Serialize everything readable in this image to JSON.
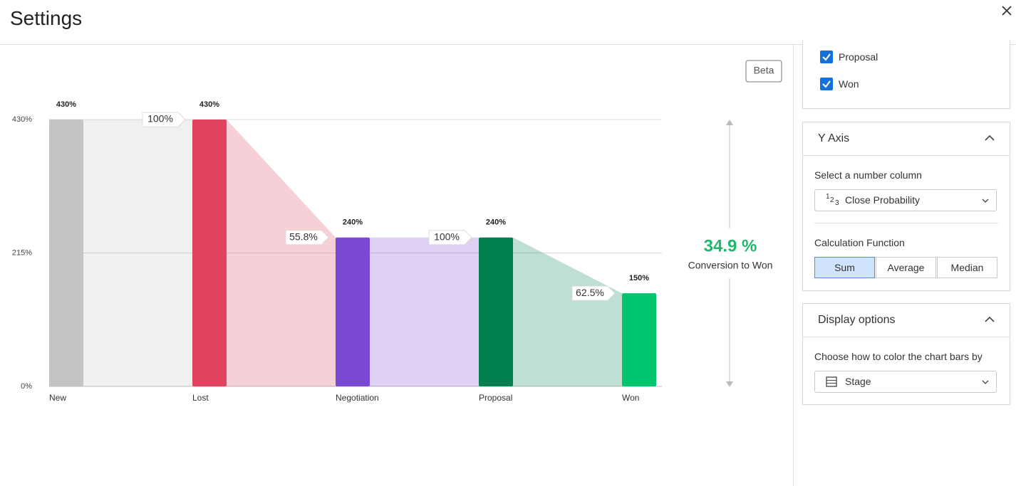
{
  "header": {
    "title": "Settings"
  },
  "chart_data": {
    "type": "funnel",
    "badge": "Beta",
    "categories": [
      "New",
      "Lost",
      "Negotiation",
      "Proposal",
      "Won"
    ],
    "values": [
      430,
      430,
      240,
      240,
      150
    ],
    "value_labels": [
      "430%",
      "430%",
      "240%",
      "240%",
      "150%"
    ],
    "colors": [
      "#c4c4c4",
      "#e0435e",
      "#7b48d3",
      "#007f4e",
      "#00c46e"
    ],
    "conversions": [
      100,
      55.8,
      100,
      62.5
    ],
    "conversion_labels": [
      "100%",
      "55.8%",
      "100%",
      "62.5%"
    ],
    "overall_conversion": {
      "value": 34.9,
      "label": "34.9 %",
      "caption": "Conversion to Won",
      "color": "#1fb86a"
    },
    "ylim": [
      0,
      430
    ],
    "yticks": [
      {
        "value": 0,
        "label": "0%"
      },
      {
        "value": 215,
        "label": "215%"
      },
      {
        "value": 430,
        "label": "430%"
      }
    ],
    "grid": true
  },
  "sidebar": {
    "stage_options": [
      "Proposal",
      "Won"
    ],
    "y_axis": {
      "title": "Y Axis",
      "column_label": "Select a number column",
      "column_icon": [
        "1",
        "2",
        "3"
      ],
      "column_value": "Close Probability",
      "function_label": "Calculation Function",
      "functions": [
        "Sum",
        "Average",
        "Median"
      ],
      "selected_function": 0
    },
    "display": {
      "title": "Display options",
      "color_label": "Choose how to color the chart bars by",
      "color_value": "Stage"
    }
  }
}
